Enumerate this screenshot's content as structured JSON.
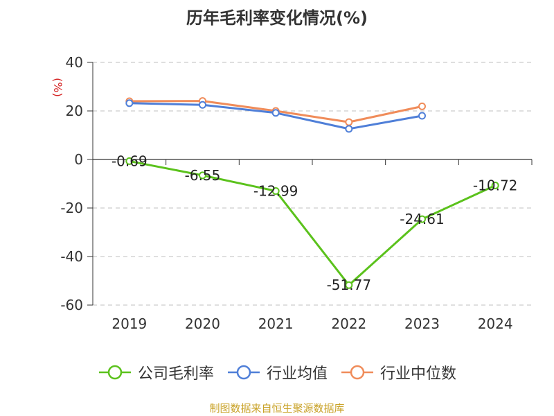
{
  "chart_data": {
    "type": "line",
    "title": "历年毛利率变化情况(%)",
    "ylabel": "(%)",
    "categories": [
      "2019",
      "2020",
      "2021",
      "2022",
      "2023",
      "2024"
    ],
    "ylim": [
      -60,
      40
    ],
    "yticks": [
      40,
      20,
      0,
      -20,
      -40,
      -60
    ],
    "grid": true,
    "legend_position": "bottom",
    "series": [
      {
        "name": "公司毛利率",
        "color": "#5bc21c",
        "values": [
          -0.69,
          -6.55,
          -12.99,
          -51.77,
          -24.61,
          -10.72
        ],
        "labels": [
          "-0.69",
          "-6.55",
          "-12.99",
          "-51.77",
          "-24.61",
          "-10.72"
        ]
      },
      {
        "name": "行业均值",
        "color": "#4f7fd8",
        "values": [
          23.2,
          22.5,
          19.2,
          12.6,
          18.0,
          null
        ]
      },
      {
        "name": "行业中位数",
        "color": "#f08c5a",
        "values": [
          24.0,
          24.1,
          20.0,
          15.4,
          21.9,
          null
        ]
      }
    ]
  },
  "source": "制图数据来自恒生聚源数据库"
}
